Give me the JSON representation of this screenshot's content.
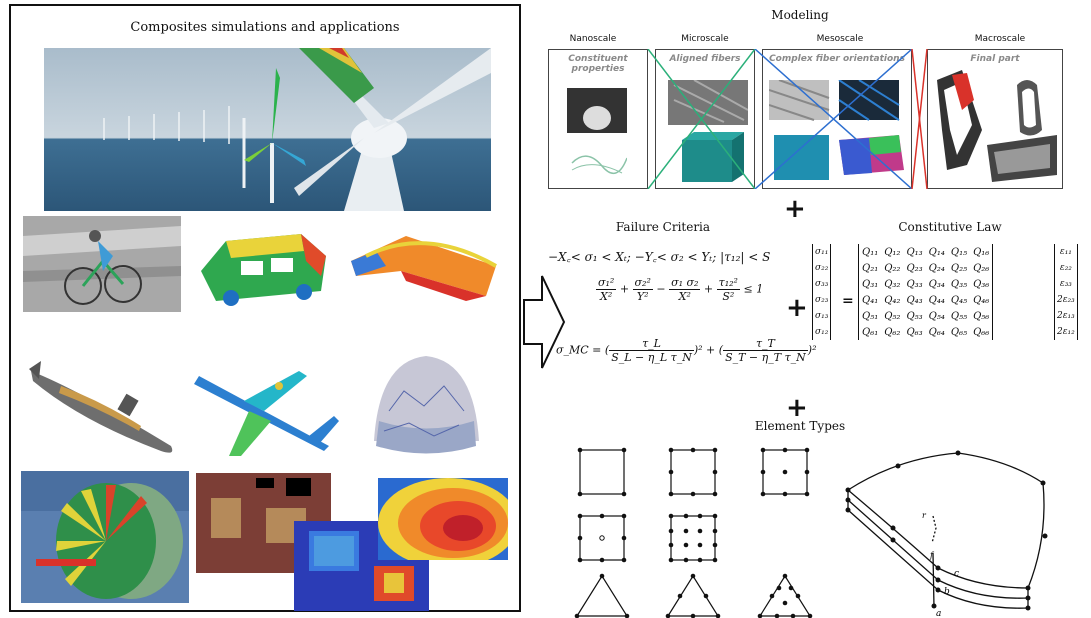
{
  "left": {
    "title": "Composites simulations and applications",
    "panels": [
      {
        "name": "offshore-wind-turbines",
        "colors": [
          "#8fa9be",
          "#3b6e96",
          "#dfe7ee"
        ]
      },
      {
        "name": "cyclist-bike",
        "colors": [
          "#9a9a9a"
        ]
      },
      {
        "name": "vehicle-body",
        "colors": [
          "#2fa84f"
        ]
      },
      {
        "name": "bridge-structure",
        "colors": [
          "#d64a2a"
        ]
      },
      {
        "name": "submarine",
        "colors": [
          "#6e6e6e"
        ]
      },
      {
        "name": "airplane",
        "colors": [
          "#2c7fd0"
        ]
      },
      {
        "name": "dome-shell",
        "colors": [
          "#9aa7c7"
        ]
      },
      {
        "name": "turbine-fan",
        "colors": [
          "#3fa35f"
        ]
      },
      {
        "name": "circuit-board",
        "colors": [
          "#7c3e36"
        ]
      },
      {
        "name": "damage-map",
        "colors": [
          "#2b3cb6"
        ]
      },
      {
        "name": "contour-map",
        "colors": [
          "#e8482a"
        ]
      }
    ]
  },
  "modeling": {
    "title": "Modeling",
    "scales": [
      {
        "label": "Nanoscale",
        "sub": "Constituent properties"
      },
      {
        "label": "Microscale",
        "sub": "Aligned fibers"
      },
      {
        "label": "Mesoscale",
        "sub": "Complex fiber orientations"
      },
      {
        "label": "Macroscale",
        "sub": "Final part"
      }
    ]
  },
  "failure": {
    "title": "Failure Criteria",
    "eq1": "−X꜀< σ₁ < Xₜ; −Y꜀< σ₂ < Yₜ; |τ₁₂| < S",
    "eq2_num": [
      "σ₁²",
      "σ₂²",
      "σ₁ σ₂",
      "τ₁₂²"
    ],
    "eq2_den": [
      "X²",
      "Y²",
      "X²",
      "S²"
    ],
    "eq2_rhs": "≤ 1",
    "eq3_lhs": "σ_MC =",
    "eq3_num": [
      "τ_L",
      "τ_T"
    ],
    "eq3_den": [
      "S_L − η_L τ_N",
      "S_T − η_T τ_N"
    ]
  },
  "constitutive": {
    "title": "Constitutive Law",
    "stress": [
      "σ₁₁",
      "σ₂₂",
      "σ₃₃",
      "σ₂₃",
      "σ₁₃",
      "σ₁₂"
    ],
    "Q": [
      [
        "Q₁₁",
        "Q₁₂",
        "Q₁₃",
        "Q₁₄",
        "Q₁₅",
        "Q₁₆"
      ],
      [
        "Q₂₁",
        "Q₂₂",
        "Q₂₃",
        "Q₂₄",
        "Q₂₅",
        "Q₂₆"
      ],
      [
        "Q₃₁",
        "Q₃₂",
        "Q₃₃",
        "Q₃₄",
        "Q₃₅",
        "Q₃₆"
      ],
      [
        "Q₄₁",
        "Q₄₂",
        "Q₄₃",
        "Q₄₄",
        "Q₄₅",
        "Q₄₆"
      ],
      [
        "Q₅₁",
        "Q₅₂",
        "Q₅₃",
        "Q₅₄",
        "Q₅₅",
        "Q₅₆"
      ],
      [
        "Q₆₁",
        "Q₆₂",
        "Q₆₃",
        "Q₆₄",
        "Q₆₅",
        "Q₆₆"
      ]
    ],
    "strain": [
      "ε₁₁",
      "ε₂₂",
      "ε₃₃",
      "2ε₂₃",
      "2ε₁₃",
      "2ε₁₂"
    ]
  },
  "elements": {
    "title": "Element Types",
    "shell_labels": [
      "a",
      "b",
      "c",
      "f",
      "r"
    ]
  },
  "plus_symbol": "+",
  "equals_symbol": "="
}
